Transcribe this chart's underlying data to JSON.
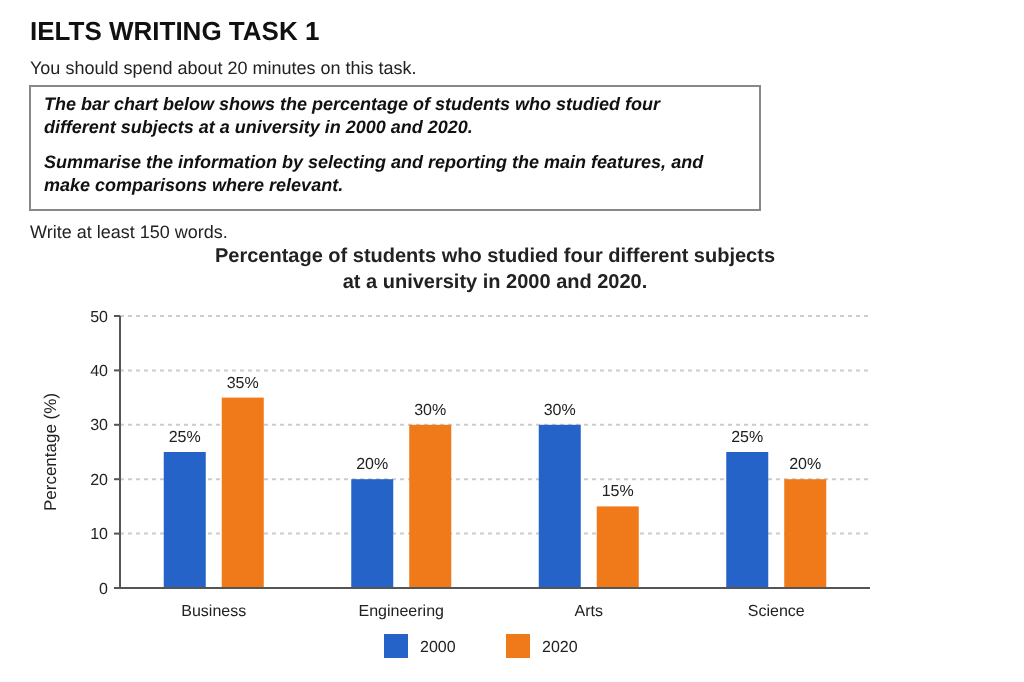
{
  "chart_data": {
    "type": "bar",
    "title": "Percentage of students who studied four different subjects at a university in 2000 and 2020.",
    "ylabel": "Percentage (%)",
    "annotations": [
      "IELTS WRITING TASK 1",
      "You should spend about 20 minutes on this task.",
      "The bar chart below shows the percentage of students who studied four different subjects at a university in 2000 and 2020.",
      "Summarise the information by selecting and reporting the main features, and make comparisons where relevant.",
      "Write at least 150 words."
    ],
    "categories": [
      "Business",
      "Engineering",
      "Arts",
      "Science"
    ],
    "series": [
      {
        "name": "2000",
        "color": "#2563c9",
        "values": [
          25,
          20,
          30,
          25
        ],
        "value_labels": [
          "25%",
          "20%",
          "30%",
          "25%"
        ]
      },
      {
        "name": "2020",
        "color": "#f07a1a",
        "values": [
          35,
          30,
          15,
          20
        ],
        "value_labels": [
          "35%",
          "30%",
          "15%",
          "20%"
        ]
      }
    ],
    "ylim": [
      0,
      50
    ],
    "yticks": [
      0,
      10,
      20,
      30,
      40,
      50
    ],
    "grid": "y",
    "legend": "bottom"
  }
}
